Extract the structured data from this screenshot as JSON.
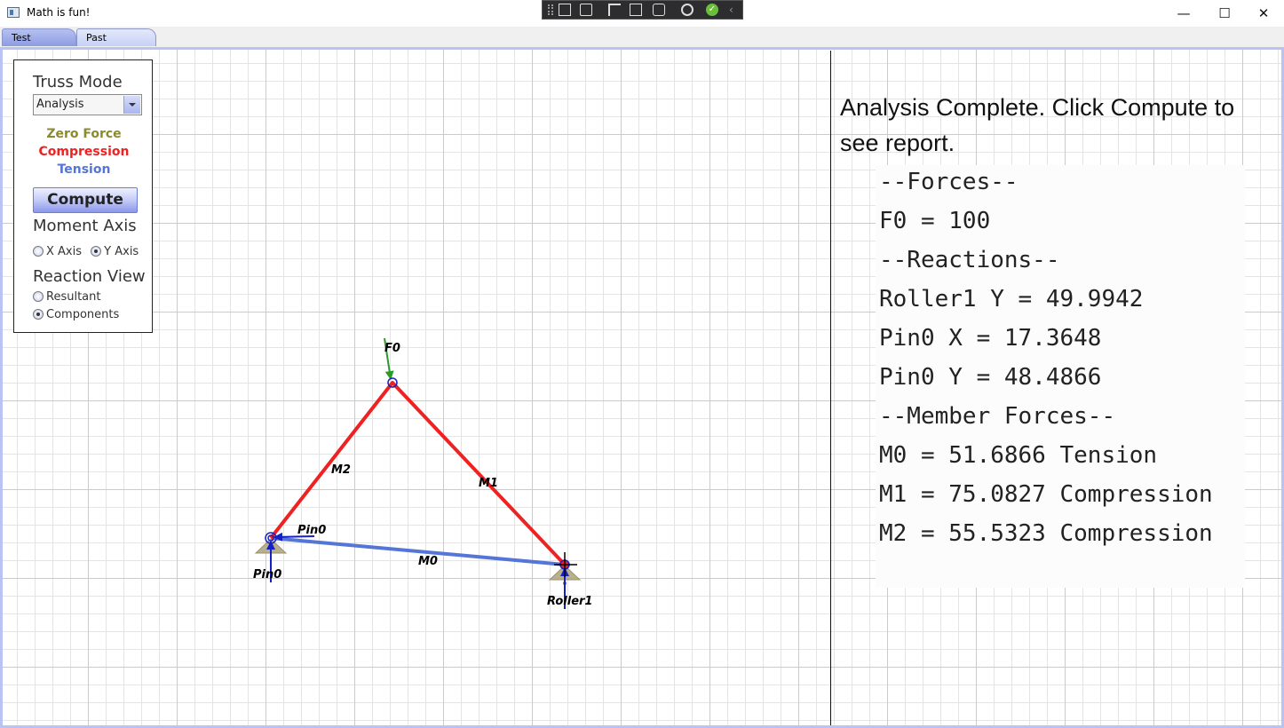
{
  "window": {
    "title": "Math is fun!",
    "min": "—",
    "max": "☐",
    "close": "✕"
  },
  "tabs": [
    {
      "label": "Test Canvas"
    },
    {
      "label": "Past Projects"
    }
  ],
  "panel": {
    "truss_mode_label": "Truss Mode",
    "mode_value": "Analysis",
    "legend": {
      "zero_force": "Zero Force",
      "compression": "Compression",
      "tension": "Tension"
    },
    "compute_label": "Compute",
    "moment_axis_label": "Moment Axis",
    "x_axis": "X Axis",
    "y_axis": "Y Axis",
    "moment_axis_selected": "Y Axis",
    "reaction_view_label": "Reaction View",
    "resultant": "Resultant",
    "components": "Components",
    "reaction_view_selected": "Components"
  },
  "colors": {
    "zero_force": "#8b8a2f",
    "compression": "#ee2222",
    "tension": "#5575d8",
    "load": "#2a9a2a",
    "reaction": "#1520c8",
    "support": "#b8b08a"
  },
  "truss": {
    "nodes": [
      {
        "id": "top",
        "label": "F0"
      },
      {
        "id": "pin",
        "label": "Pin0"
      },
      {
        "id": "roller",
        "label": "Roller1"
      }
    ],
    "members": [
      {
        "label": "M0",
        "state": "tension"
      },
      {
        "label": "M1",
        "state": "compression"
      },
      {
        "label": "M2",
        "state": "compression"
      }
    ],
    "pin_reaction_label": "Pin0"
  },
  "report": {
    "status": "Analysis Complete. Click Compute to see report.",
    "lines": [
      "--Forces--",
      "F0 = 100",
      "--Reactions--",
      "Roller1 Y = 49.9942",
      "Pin0 X = 17.3648",
      "Pin0 Y = 48.4866",
      "--Member Forces--",
      "M0 = 51.6866 Tension",
      "M1 = 75.0827 Compression",
      "M2 = 55.5323 Compression"
    ]
  },
  "icons": {
    "devbar": [
      "toolbar-grip-icon",
      "select-element-icon",
      "record-icon",
      "select-pointer-icon",
      "layout-adorner-icon",
      "track-focus-icon",
      "hot-reload-icon",
      "check-icon",
      "collapse-chevron-icon"
    ]
  }
}
